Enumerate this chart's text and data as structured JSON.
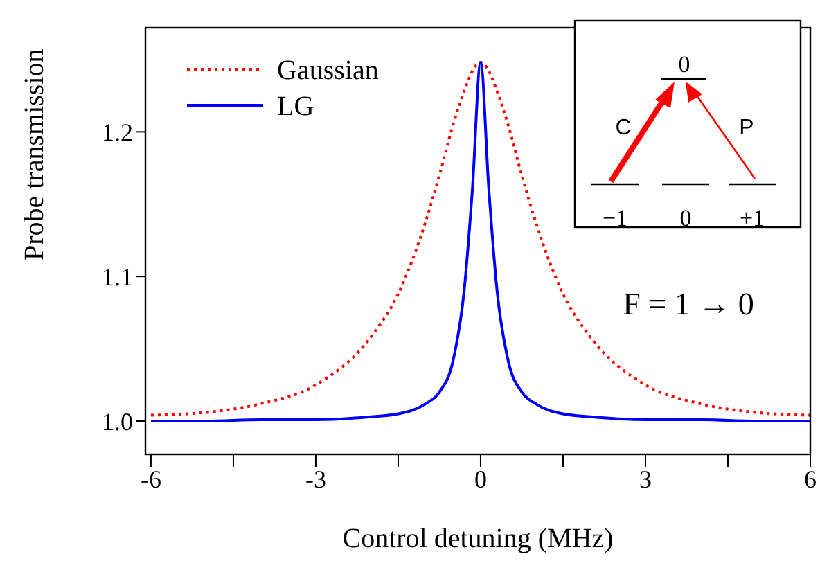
{
  "chart_data": {
    "type": "line",
    "xlabel": "Control detuning (MHz)",
    "ylabel": "Probe transmission",
    "x": [
      -6,
      -5,
      -4,
      -3,
      -2,
      -1.5,
      -1,
      -0.75,
      -0.5,
      -0.3,
      -0.15,
      0,
      0.15,
      0.3,
      0.5,
      0.75,
      1,
      1.5,
      2,
      3,
      4,
      5,
      6
    ],
    "series": [
      {
        "name": "Gaussian",
        "color": "#ff0000",
        "line_style": "dotted",
        "values": [
          1.004,
          1.006,
          1.012,
          1.025,
          1.058,
          1.088,
          1.138,
          1.17,
          1.205,
          1.228,
          1.242,
          1.248,
          1.242,
          1.228,
          1.205,
          1.17,
          1.138,
          1.088,
          1.058,
          1.025,
          1.012,
          1.006,
          1.004
        ]
      },
      {
        "name": "LG",
        "color": "#0000ff",
        "line_style": "solid",
        "values": [
          1.0,
          1.0,
          1.001,
          1.001,
          1.003,
          1.005,
          1.012,
          1.02,
          1.042,
          1.09,
          1.16,
          1.248,
          1.16,
          1.09,
          1.042,
          1.02,
          1.012,
          1.005,
          1.003,
          1.001,
          1.001,
          1.0,
          1.0
        ]
      }
    ],
    "xlim": [
      -6.1,
      6.0
    ],
    "xticks": [
      -6,
      {
        "value": -4.5,
        "label": null
      },
      -3,
      {
        "value": -1.5,
        "label": null
      },
      0,
      {
        "value": 1.5,
        "label": null
      },
      3,
      {
        "value": 4.5,
        "label": null
      },
      6
    ],
    "ylim": [
      0.977,
      1.272
    ],
    "yticks": [
      {
        "value": 1,
        "label": "1.0"
      },
      1.1,
      1.2
    ],
    "grid": false,
    "legend": "top left",
    "marker": "none",
    "annotations": [
      "0",
      "C",
      "P",
      "−1",
      "0",
      "+1",
      "F = 1 → 0"
    ]
  }
}
